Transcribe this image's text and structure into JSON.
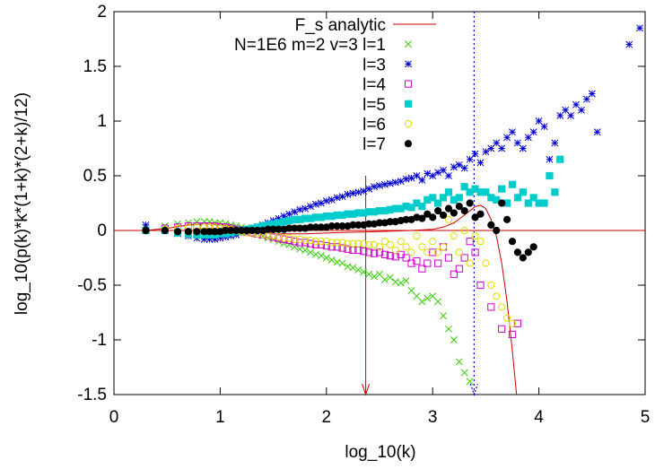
{
  "chart_data": {
    "type": "scatter",
    "xlabel": "log_10(k)",
    "ylabel": "log_10(p(k)*k*(1+k)*(2+k)/12)",
    "xlim": [
      0,
      5
    ],
    "ylim": [
      -1.5,
      2
    ],
    "x_ticks": [
      0,
      1,
      2,
      3,
      4,
      5
    ],
    "y_ticks": [
      -1.5,
      -1,
      -0.5,
      0,
      0.5,
      1,
      1.5,
      2
    ],
    "x_tick_labels": [
      "0",
      "1",
      "2",
      "3",
      "4",
      "5"
    ],
    "y_tick_labels": [
      "-1.5",
      "-1",
      "-0.5",
      "0",
      "0.5",
      "1",
      "1.5",
      "2"
    ],
    "grid": false,
    "legend_position": "top-right",
    "zero_line": 0,
    "vertical_markers": [
      {
        "x": 2.37,
        "style": "arrow",
        "color": "#cc0000"
      },
      {
        "x": 3.39,
        "style": "dotted",
        "color": "#0000cc"
      }
    ],
    "series": [
      {
        "name": "F_s analytic",
        "style": "line",
        "color": "#cc0000",
        "x": [
          0.3,
          0.5,
          0.7,
          0.85,
          1.0,
          1.15,
          1.3,
          1.5,
          1.8,
          2.1,
          2.5,
          2.8,
          3.0,
          3.1,
          3.2,
          3.3,
          3.4,
          3.45,
          3.5,
          3.55,
          3.6,
          3.65,
          3.7,
          3.75,
          3.8
        ],
        "y": [
          0.0,
          0.02,
          0.05,
          0.06,
          0.05,
          0.03,
          0.0,
          -0.03,
          -0.03,
          -0.02,
          -0.01,
          0.0,
          0.01,
          0.03,
          0.07,
          0.14,
          0.22,
          0.23,
          0.2,
          0.1,
          -0.05,
          -0.3,
          -0.65,
          -1.1,
          -1.6
        ]
      },
      {
        "name": "N=1E6 m=2 v=3 l=1",
        "style": "x",
        "color": "#33cc00",
        "x": [
          0.3,
          0.48,
          0.6,
          0.7,
          0.78,
          0.85,
          0.9,
          0.95,
          1.0,
          1.05,
          1.1,
          1.15,
          1.2,
          1.25,
          1.3,
          1.35,
          1.4,
          1.45,
          1.5,
          1.55,
          1.6,
          1.65,
          1.7,
          1.75,
          1.8,
          1.85,
          1.9,
          1.95,
          2.0,
          2.05,
          2.1,
          2.15,
          2.2,
          2.25,
          2.3,
          2.35,
          2.4,
          2.45,
          2.5,
          2.55,
          2.6,
          2.65,
          2.7,
          2.75,
          2.8,
          2.85,
          2.9,
          2.95,
          3.0,
          3.05,
          3.1,
          3.15,
          3.2,
          3.25,
          3.3,
          3.35
        ],
        "y": [
          0.03,
          0.04,
          0.06,
          0.07,
          0.08,
          0.08,
          0.08,
          0.07,
          0.07,
          0.06,
          0.05,
          0.04,
          0.03,
          0.01,
          -0.01,
          -0.03,
          -0.05,
          -0.07,
          -0.08,
          -0.1,
          -0.12,
          -0.13,
          -0.15,
          -0.17,
          -0.18,
          -0.2,
          -0.22,
          -0.23,
          -0.25,
          -0.27,
          -0.29,
          -0.3,
          -0.33,
          -0.34,
          -0.36,
          -0.38,
          -0.4,
          -0.42,
          -0.4,
          -0.45,
          -0.43,
          -0.47,
          -0.48,
          -0.46,
          -0.55,
          -0.6,
          -0.65,
          -0.62,
          -0.6,
          -0.65,
          -0.78,
          -0.9,
          -1.0,
          -1.2,
          -1.3,
          -1.38
        ]
      },
      {
        "name": "l=3",
        "style": "star",
        "color": "#0000cc",
        "x": [
          0.3,
          0.48,
          0.6,
          0.7,
          0.78,
          0.85,
          0.9,
          0.95,
          1.0,
          1.05,
          1.1,
          1.15,
          1.2,
          1.25,
          1.3,
          1.35,
          1.4,
          1.45,
          1.5,
          1.55,
          1.6,
          1.65,
          1.7,
          1.75,
          1.8,
          1.85,
          1.9,
          1.95,
          2.0,
          2.05,
          2.1,
          2.15,
          2.2,
          2.25,
          2.3,
          2.35,
          2.4,
          2.45,
          2.5,
          2.55,
          2.6,
          2.65,
          2.7,
          2.75,
          2.8,
          2.85,
          2.9,
          2.95,
          3.0,
          3.05,
          3.1,
          3.15,
          3.2,
          3.25,
          3.3,
          3.35,
          3.4,
          3.45,
          3.5,
          3.55,
          3.6,
          3.65,
          3.7,
          3.75,
          3.8,
          3.85,
          3.9,
          3.95,
          4.0,
          4.05,
          4.1,
          4.15,
          4.2,
          4.25,
          4.3,
          4.35,
          4.4,
          4.45,
          4.5,
          4.55,
          4.85,
          4.95
        ],
        "y": [
          0.05,
          0.0,
          -0.03,
          -0.05,
          -0.07,
          -0.08,
          -0.08,
          -0.08,
          -0.07,
          -0.06,
          -0.05,
          -0.04,
          -0.02,
          0.0,
          0.02,
          0.03,
          0.05,
          0.07,
          0.09,
          0.11,
          0.13,
          0.15,
          0.17,
          0.19,
          0.2,
          0.22,
          0.24,
          0.25,
          0.27,
          0.28,
          0.3,
          0.31,
          0.33,
          0.34,
          0.35,
          0.36,
          0.38,
          0.4,
          0.41,
          0.42,
          0.43,
          0.44,
          0.45,
          0.47,
          0.48,
          0.5,
          0.46,
          0.52,
          0.5,
          0.53,
          0.55,
          0.5,
          0.58,
          0.6,
          0.57,
          0.65,
          0.7,
          0.62,
          0.72,
          0.75,
          0.8,
          0.75,
          0.85,
          0.9,
          0.8,
          0.75,
          0.85,
          0.9,
          1.0,
          0.95,
          0.65,
          0.8,
          1.05,
          1.1,
          1.05,
          1.15,
          1.1,
          1.2,
          1.25,
          0.9,
          1.7,
          1.85
        ]
      },
      {
        "name": "l=4",
        "style": "square-open",
        "color": "#cc00cc",
        "x": [
          0.3,
          0.48,
          0.6,
          0.7,
          0.78,
          0.85,
          0.9,
          0.95,
          1.0,
          1.05,
          1.1,
          1.15,
          1.2,
          1.25,
          1.3,
          1.35,
          1.4,
          1.45,
          1.5,
          1.55,
          1.6,
          1.65,
          1.7,
          1.75,
          1.8,
          1.85,
          1.9,
          1.95,
          2.0,
          2.05,
          2.1,
          2.15,
          2.2,
          2.25,
          2.3,
          2.35,
          2.4,
          2.45,
          2.5,
          2.55,
          2.6,
          2.65,
          2.7,
          2.75,
          2.8,
          2.85,
          2.9,
          2.95,
          3.0,
          3.05,
          3.1,
          3.15,
          3.2,
          3.25,
          3.3,
          3.35,
          3.4,
          3.45,
          3.55,
          3.65,
          3.75,
          3.8
        ],
        "y": [
          0.0,
          0.02,
          0.03,
          0.04,
          0.04,
          0.04,
          0.04,
          0.04,
          0.03,
          0.03,
          0.02,
          0.01,
          0.0,
          -0.01,
          -0.02,
          -0.03,
          -0.04,
          -0.05,
          -0.06,
          -0.07,
          -0.08,
          -0.09,
          -0.1,
          -0.11,
          -0.11,
          -0.12,
          -0.13,
          -0.13,
          -0.14,
          -0.15,
          -0.15,
          -0.16,
          -0.17,
          -0.18,
          -0.18,
          -0.19,
          -0.2,
          -0.21,
          -0.2,
          -0.22,
          -0.23,
          -0.24,
          -0.22,
          -0.25,
          -0.3,
          -0.28,
          -0.35,
          -0.3,
          -0.2,
          -0.3,
          -0.15,
          -0.25,
          -0.4,
          -0.35,
          -0.25,
          -0.1,
          -0.2,
          -0.5,
          -0.7,
          -0.9,
          -0.95,
          -0.85
        ]
      },
      {
        "name": "l=5",
        "style": "square-filled",
        "color": "#00cccc",
        "x": [
          0.3,
          0.48,
          0.6,
          0.7,
          0.78,
          0.85,
          0.9,
          0.95,
          1.0,
          1.05,
          1.1,
          1.15,
          1.2,
          1.25,
          1.3,
          1.35,
          1.4,
          1.45,
          1.5,
          1.55,
          1.6,
          1.65,
          1.7,
          1.75,
          1.8,
          1.85,
          1.9,
          1.95,
          2.0,
          2.05,
          2.1,
          2.15,
          2.2,
          2.25,
          2.3,
          2.35,
          2.4,
          2.45,
          2.5,
          2.55,
          2.6,
          2.65,
          2.7,
          2.75,
          2.8,
          2.85,
          2.9,
          2.95,
          3.0,
          3.05,
          3.1,
          3.15,
          3.2,
          3.25,
          3.3,
          3.35,
          3.4,
          3.45,
          3.5,
          3.55,
          3.6,
          3.65,
          3.7,
          3.75,
          3.8,
          3.85,
          3.9,
          3.95,
          4.0,
          4.05,
          4.1,
          4.15,
          4.2
        ],
        "y": [
          0.0,
          0.0,
          -0.02,
          -0.03,
          -0.04,
          -0.04,
          -0.04,
          -0.04,
          -0.03,
          -0.03,
          -0.02,
          -0.01,
          0.0,
          0.01,
          0.02,
          0.03,
          0.04,
          0.05,
          0.06,
          0.07,
          0.08,
          0.09,
          0.1,
          0.1,
          0.11,
          0.11,
          0.12,
          0.12,
          0.13,
          0.13,
          0.14,
          0.14,
          0.15,
          0.15,
          0.16,
          0.16,
          0.17,
          0.17,
          0.18,
          0.18,
          0.19,
          0.2,
          0.2,
          0.22,
          0.21,
          0.25,
          0.22,
          0.28,
          0.3,
          0.25,
          0.3,
          0.35,
          0.28,
          0.3,
          0.4,
          0.35,
          0.38,
          0.35,
          0.35,
          0.3,
          0.28,
          0.38,
          0.25,
          0.42,
          0.3,
          0.35,
          0.25,
          0.3,
          0.25,
          0.25,
          0.5,
          0.35,
          0.65
        ]
      },
      {
        "name": "l=6",
        "style": "circle-open",
        "color": "#dddd00",
        "x": [
          0.3,
          0.48,
          0.6,
          0.7,
          0.78,
          0.85,
          0.9,
          0.95,
          1.0,
          1.05,
          1.1,
          1.15,
          1.2,
          1.25,
          1.3,
          1.35,
          1.4,
          1.45,
          1.5,
          1.55,
          1.6,
          1.65,
          1.7,
          1.75,
          1.8,
          1.85,
          1.9,
          1.95,
          2.0,
          2.05,
          2.1,
          2.15,
          2.2,
          2.25,
          2.3,
          2.35,
          2.4,
          2.45,
          2.5,
          2.55,
          2.6,
          2.65,
          2.7,
          2.75,
          2.8,
          2.85,
          2.9,
          2.95,
          3.0,
          3.05,
          3.1,
          3.15,
          3.2,
          3.25,
          3.3,
          3.35,
          3.4,
          3.45,
          3.5,
          3.55,
          3.6,
          3.65,
          3.7,
          3.75
        ],
        "y": [
          0.0,
          0.01,
          0.02,
          0.03,
          0.03,
          0.03,
          0.03,
          0.03,
          0.02,
          0.02,
          0.01,
          0.0,
          -0.01,
          -0.02,
          -0.03,
          -0.03,
          -0.04,
          -0.05,
          -0.05,
          -0.06,
          -0.07,
          -0.07,
          -0.08,
          -0.08,
          -0.09,
          -0.09,
          -0.1,
          -0.1,
          -0.1,
          -0.11,
          -0.11,
          -0.11,
          -0.12,
          -0.12,
          -0.12,
          -0.12,
          -0.13,
          -0.13,
          -0.15,
          -0.1,
          -0.13,
          -0.18,
          -0.1,
          -0.15,
          -0.2,
          -0.05,
          -0.15,
          -0.2,
          -0.1,
          -0.2,
          -0.15,
          0.1,
          -0.05,
          -0.2,
          0.0,
          -0.3,
          -0.05,
          -0.1,
          -0.3,
          -0.5,
          -0.6,
          -0.7,
          -0.8,
          -0.85
        ]
      },
      {
        "name": "l=7",
        "style": "circle-filled",
        "color": "#000000",
        "x": [
          0.3,
          0.48,
          0.6,
          0.7,
          0.78,
          0.85,
          0.9,
          0.95,
          1.0,
          1.05,
          1.1,
          1.15,
          1.2,
          1.25,
          1.3,
          1.35,
          1.4,
          1.45,
          1.5,
          1.55,
          1.6,
          1.65,
          1.7,
          1.75,
          1.8,
          1.85,
          1.9,
          1.95,
          2.0,
          2.05,
          2.1,
          2.15,
          2.2,
          2.25,
          2.3,
          2.35,
          2.4,
          2.45,
          2.5,
          2.55,
          2.6,
          2.65,
          2.7,
          2.75,
          2.8,
          2.85,
          2.9,
          2.95,
          3.0,
          3.05,
          3.1,
          3.15,
          3.2,
          3.25,
          3.3,
          3.35,
          3.4,
          3.45,
          3.55,
          3.6,
          3.65,
          3.7,
          3.75,
          3.8,
          3.85,
          3.9,
          3.95
        ],
        "y": [
          0.0,
          0.0,
          -0.01,
          -0.01,
          -0.01,
          -0.01,
          -0.01,
          -0.01,
          -0.01,
          0.0,
          0.0,
          0.0,
          0.0,
          0.0,
          0.0,
          0.0,
          0.0,
          0.01,
          0.01,
          0.01,
          0.01,
          0.02,
          0.02,
          0.02,
          0.02,
          0.03,
          0.03,
          0.03,
          0.03,
          0.04,
          0.04,
          0.04,
          0.04,
          0.05,
          0.05,
          0.05,
          0.06,
          0.06,
          0.07,
          0.07,
          0.08,
          0.08,
          0.09,
          0.1,
          0.1,
          0.12,
          0.11,
          0.15,
          0.12,
          0.18,
          0.14,
          0.2,
          0.16,
          0.22,
          0.18,
          0.25,
          0.12,
          0.15,
          0.05,
          0.0,
          0.25,
          0.1,
          -0.1,
          -0.2,
          -0.25,
          -0.2,
          -0.15
        ]
      }
    ]
  }
}
